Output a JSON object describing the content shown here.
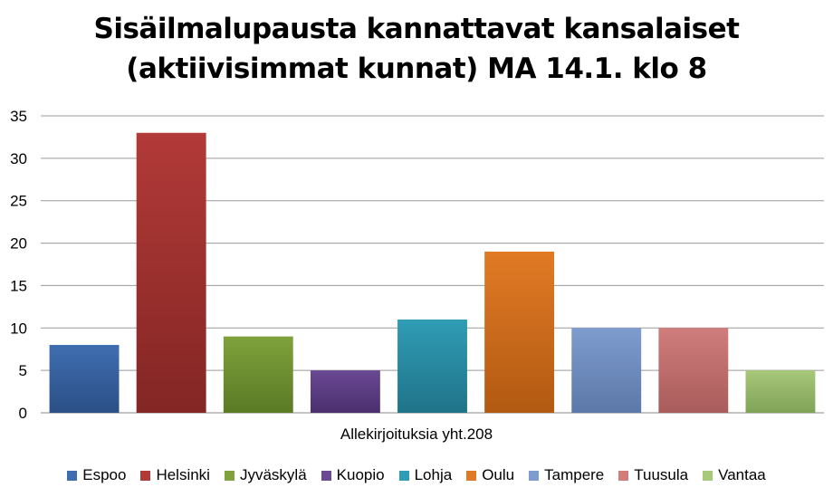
{
  "chart_data": {
    "type": "bar",
    "title_line1": "Sisäilmalupausta kannattavat kansalaiset",
    "title_line2": "(aktiivisimmat kunnat) MA 14.1. klo 8",
    "xlabel": "Allekirjoituksia yht.208",
    "ylabel": "",
    "ylim": [
      0,
      35
    ],
    "yticks": [
      0,
      5,
      10,
      15,
      20,
      25,
      30,
      35
    ],
    "grid": true,
    "legend_position": "bottom",
    "categories": [
      "Espoo",
      "Helsinki",
      "Jyväskylä",
      "Kuopio",
      "Lohja",
      "Oulu",
      "Tampere",
      "Tuusula",
      "Vantaa"
    ],
    "values": [
      8,
      33,
      9,
      5,
      11,
      19,
      10,
      10,
      5
    ],
    "colors": [
      "#3f6eb0",
      "#b23a38",
      "#7fa23c",
      "#6a4893",
      "#2f9db5",
      "#e17a25",
      "#7f9ccf",
      "#d07d7c",
      "#a8c87a"
    ],
    "colors_dark": [
      "#2b4f86",
      "#832624",
      "#5a7a25",
      "#4a2f6e",
      "#1f7389",
      "#b25a12",
      "#5b78a8",
      "#a85c5b",
      "#80a257"
    ]
  }
}
